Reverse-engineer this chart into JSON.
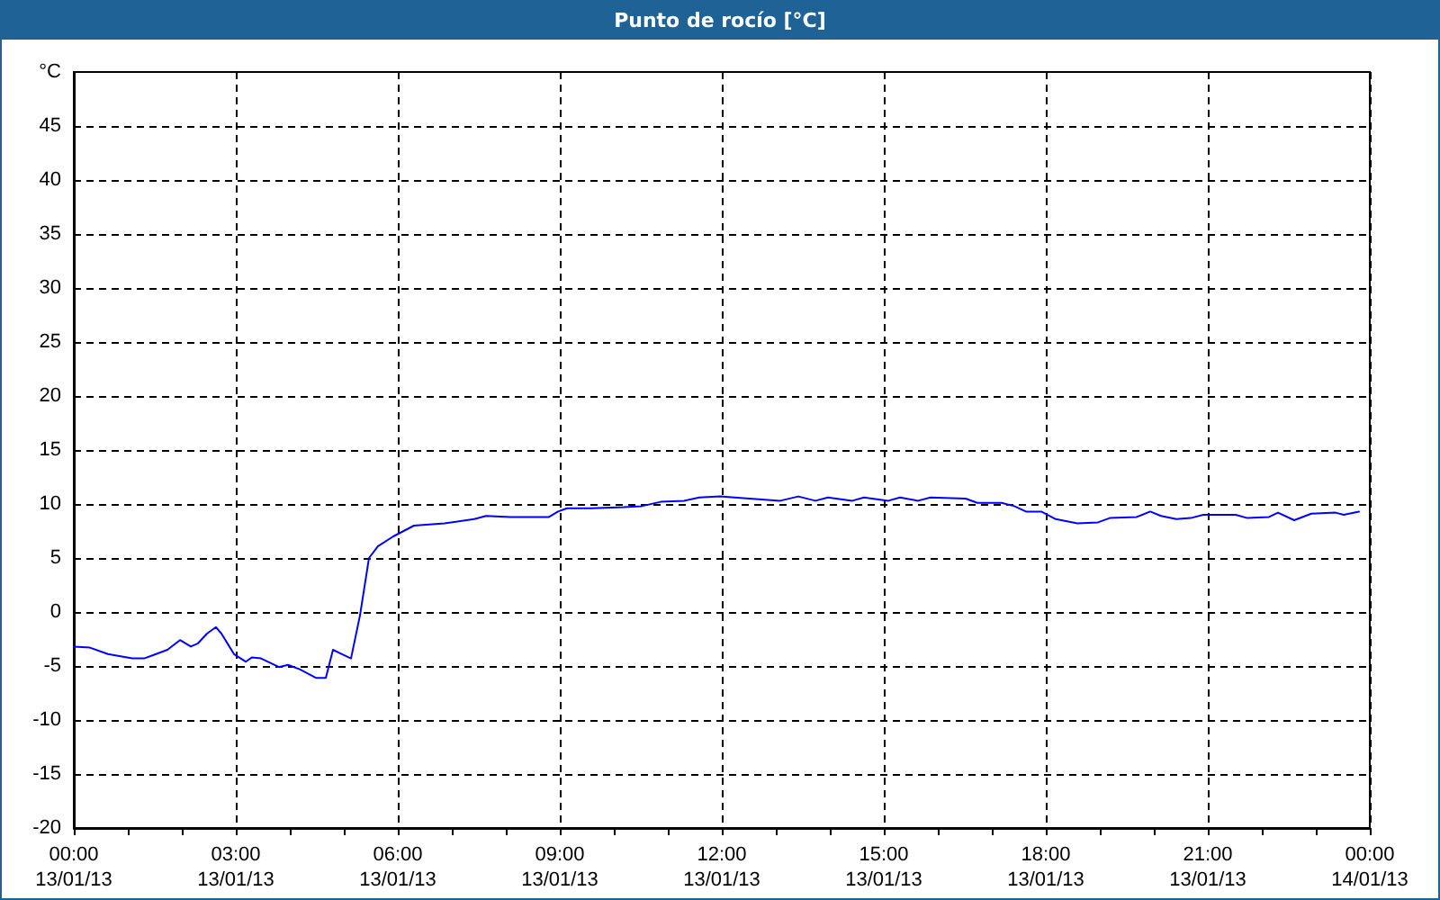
{
  "chart_data": {
    "type": "line",
    "title": "Punto de rocío [°C]",
    "ylabel": "°C",
    "x": [
      "--01-13T00:00",
      "--01-13T00:18",
      "--01-13T00:38",
      "--01-13T01:05",
      "--01-13T01:18",
      "--01-13T01:28",
      "--01-13T01:44",
      "--01-13T01:58",
      "--01-13T02:10",
      "--01-13T02:18",
      "--01-13T02:28",
      "--01-13T02:38",
      "--01-13T02:44",
      "--01-13T02:58",
      "--01-13T03:11",
      "--01-13T03:18",
      "--01-13T03:28",
      "--01-13T03:48",
      "--01-13T03:58",
      "--01-13T04:11",
      "--01-13T04:29",
      "--01-13T04:40",
      "--01-13T04:48",
      "--01-13T04:58",
      "--01-13T05:08",
      "--01-13T05:18",
      "--01-13T05:28",
      "--01-13T05:38",
      "--01-13T05:55",
      "--01-13T06:18",
      "--01-13T06:52",
      "--01-13T07:25",
      "--01-13T07:38",
      "--01-13T08:05",
      "--01-13T08:48",
      "--01-13T08:58",
      "--01-13T09:08",
      "--01-13T09:35",
      "--01-13T10:11",
      "--01-13T10:31",
      "--01-13T10:52",
      "--01-13T11:18",
      "--01-13T11:35",
      "--01-13T11:58",
      "--01-13T12:14",
      "--01-13T13:05",
      "--01-13T13:25",
      "--01-13T13:44",
      "--01-13T13:58",
      "--01-13T14:25",
      "--01-13T14:38",
      "--01-13T15:05",
      "--01-13T15:18",
      "--01-13T15:38",
      "--01-13T15:52",
      "--01-13T16:31",
      "--01-13T16:44",
      "--01-13T17:11",
      "--01-13T17:25",
      "--01-13T17:38",
      "--01-13T17:55",
      "--01-13T18:11",
      "--01-13T18:35",
      "--01-13T18:58",
      "--01-13T19:11",
      "--01-13T19:41",
      "--01-13T19:56",
      "--01-13T20:08",
      "--01-13T20:25",
      "--01-13T20:41",
      "--01-13T20:55",
      "--01-13T21:31",
      "--01-13T21:44",
      "--01-13T22:08",
      "--01-13T22:18",
      "--01-13T22:36",
      "--01-13T22:55",
      "--01-13T23:22",
      "--01-13T23:31",
      "--01-13T23:48"
    ],
    "series": [
      {
        "color": "#0000ff",
        "values": [
          -3.2,
          -3.3,
          -3.9,
          -4.3,
          -4.3,
          -4.0,
          -3.5,
          -2.6,
          -3.2,
          -2.9,
          -2.0,
          -1.4,
          -2.0,
          -3.9,
          -4.6,
          -4.2,
          -4.3,
          -5.1,
          -4.9,
          -5.3,
          -6.1,
          -6.1,
          -3.5,
          -3.9,
          -4.3,
          -0.3,
          5.0,
          6.1,
          7.0,
          8.0,
          8.2,
          8.6,
          8.9,
          8.8,
          8.8,
          9.3,
          9.6,
          9.6,
          9.7,
          9.8,
          10.2,
          10.3,
          10.6,
          10.7,
          10.6,
          10.3,
          10.7,
          10.3,
          10.6,
          10.3,
          10.6,
          10.3,
          10.6,
          10.3,
          10.6,
          10.5,
          10.1,
          10.1,
          9.8,
          9.3,
          9.3,
          8.6,
          8.2,
          8.3,
          8.7,
          8.8,
          9.3,
          8.9,
          8.6,
          8.7,
          9.0,
          9.0,
          8.7,
          8.8,
          9.2,
          8.5,
          9.1,
          9.2,
          9.0,
          9.3
        ]
      }
    ],
    "xlim": [
      "--01-13T00:00",
      "--01-14T00:00"
    ],
    "xticks": [
      {
        "value": "--01-13T00:00",
        "label": "00:00\n13/01/13"
      },
      {
        "value": "--01-13T01:00",
        "label": null
      },
      {
        "value": "--01-13T02:00",
        "label": null
      },
      {
        "value": "--01-13T03:00",
        "label": "03:00\n13/01/13"
      },
      {
        "value": "--01-13T04:00",
        "label": null
      },
      {
        "value": "--01-13T05:00",
        "label": null
      },
      {
        "value": "--01-13T06:00",
        "label": "06:00\n13/01/13"
      },
      {
        "value": "--01-13T07:00",
        "label": null
      },
      {
        "value": "--01-13T08:00",
        "label": null
      },
      {
        "value": "--01-13T09:00",
        "label": "09:00\n13/01/13"
      },
      {
        "value": "--01-13T10:00",
        "label": null
      },
      {
        "value": "--01-13T11:00",
        "label": null
      },
      {
        "value": "--01-13T12:00",
        "label": "12:00\n13/01/13"
      },
      {
        "value": "--01-13T13:00",
        "label": null
      },
      {
        "value": "--01-13T14:00",
        "label": null
      },
      {
        "value": "--01-13T15:00",
        "label": "15:00\n13/01/13"
      },
      {
        "value": "--01-13T16:00",
        "label": null
      },
      {
        "value": "--01-13T17:00",
        "label": null
      },
      {
        "value": "--01-13T18:00",
        "label": "18:00\n13/01/13"
      },
      {
        "value": "--01-13T19:00",
        "label": null
      },
      {
        "value": "--01-13T20:00",
        "label": null
      },
      {
        "value": "--01-13T21:00",
        "label": "21:00\n13/01/13"
      },
      {
        "value": "--01-13T22:00",
        "label": null
      },
      {
        "value": "--01-13T23:00",
        "label": null
      },
      {
        "value": "--01-14T00:00",
        "label": "00:00\n14/01/13"
      }
    ],
    "ylim": [
      -20,
      50
    ],
    "yticks": [
      -20,
      -15,
      -10,
      -5,
      0,
      5,
      10,
      15,
      20,
      25,
      30,
      35,
      40,
      45
    ],
    "grid": true,
    "line_style": "solid"
  }
}
